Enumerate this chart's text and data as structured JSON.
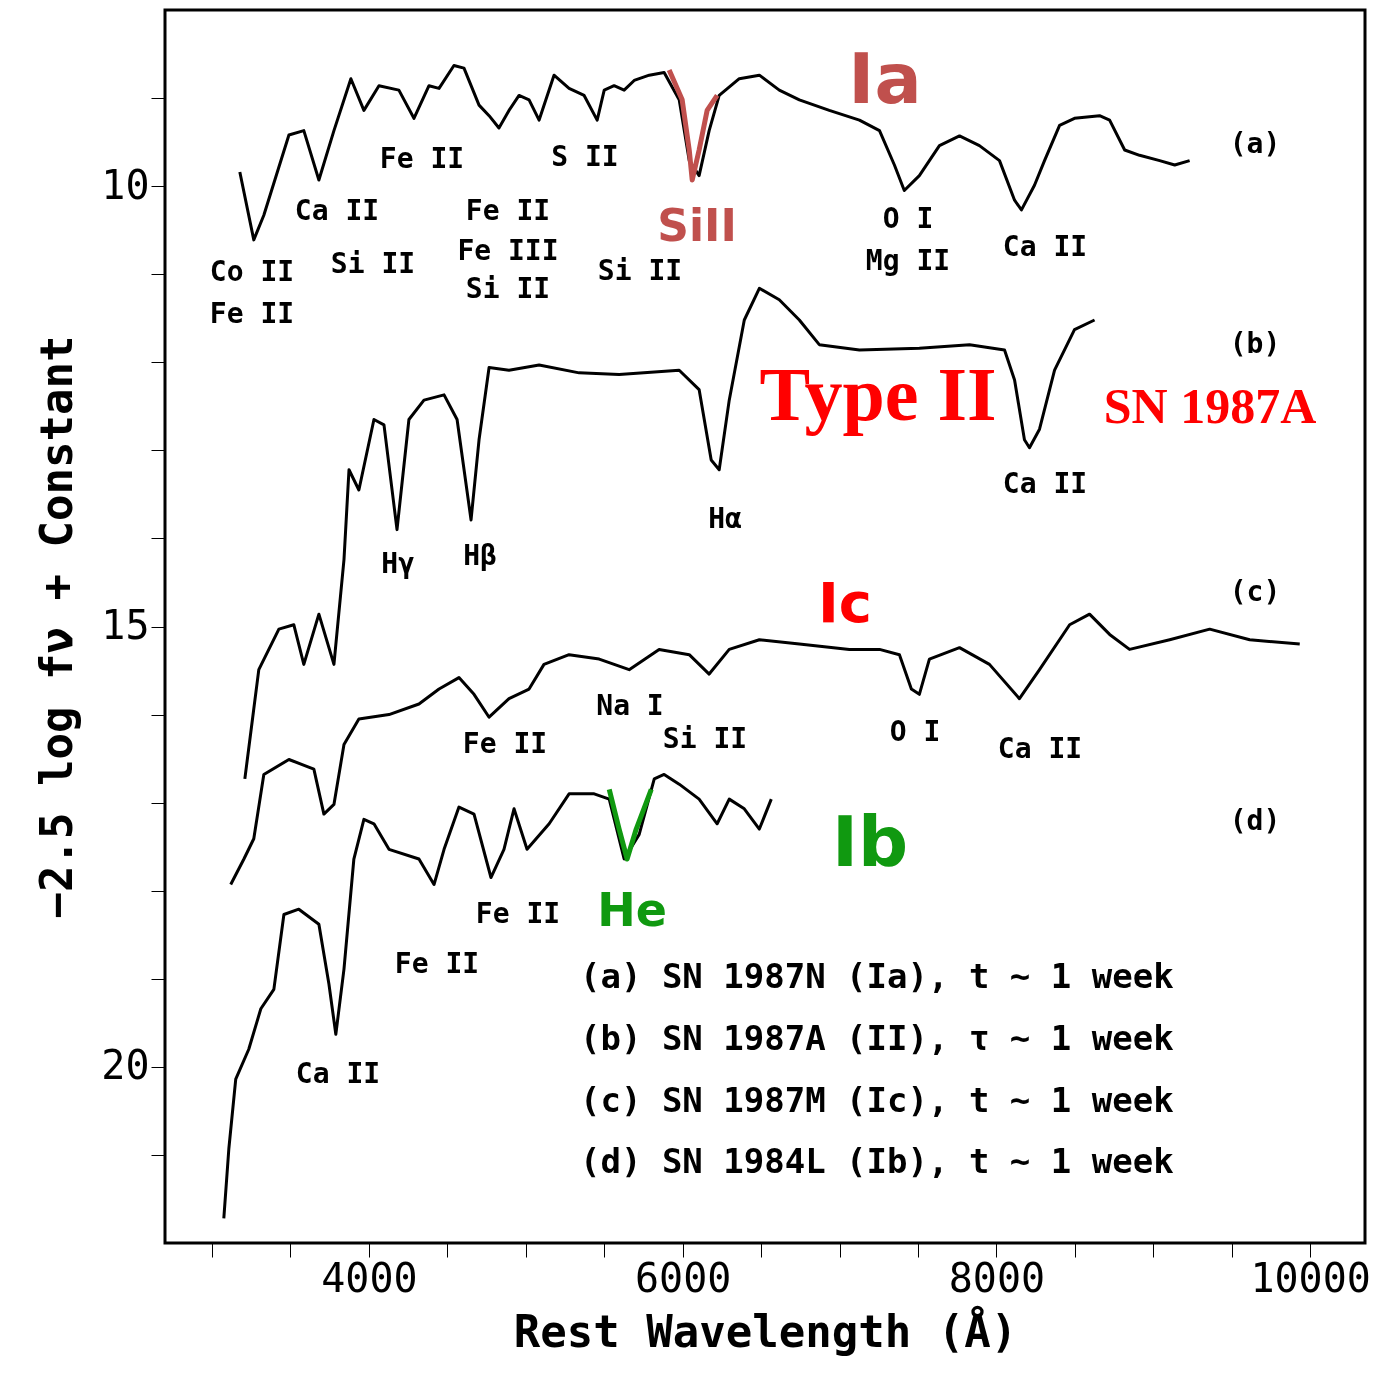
{
  "chart_data": {
    "type": "line",
    "xlabel": "Rest Wavelength (Å)",
    "ylabel": "−2.5 log fν + Constant",
    "xlim": [
      2700,
      10350
    ],
    "ylim": [
      22,
      8
    ],
    "xticks": [
      {
        "value": 3000,
        "label": null
      },
      {
        "value": 3500,
        "label": null
      },
      4000,
      {
        "value": 4500,
        "label": null
      },
      {
        "value": 5000,
        "label": null
      },
      {
        "value": 5500,
        "label": null
      },
      6000,
      {
        "value": 6500,
        "label": null
      },
      {
        "value": 7000,
        "label": null
      },
      {
        "value": 7500,
        "label": null
      },
      8000,
      {
        "value": 8500,
        "label": null
      },
      {
        "value": 9000,
        "label": null
      },
      {
        "value": 9500,
        "label": null
      },
      10000
    ],
    "yticks": [
      {
        "value": 9,
        "label": null
      },
      10,
      {
        "value": 11,
        "label": null
      },
      {
        "value": 12,
        "label": null
      },
      {
        "value": 13,
        "label": null
      },
      {
        "value": 14,
        "label": null
      },
      15,
      {
        "value": 16,
        "label": null
      },
      {
        "value": 17,
        "label": null
      },
      {
        "value": 18,
        "label": null
      },
      {
        "value": 19,
        "label": null
      },
      20,
      {
        "value": 21,
        "label": null
      }
    ],
    "grid": false,
    "marker": "none",
    "line_style": "solid",
    "series": [
      {
        "color": "#000000",
        "x": [
          3177,
          3266,
          3330,
          3490,
          3585,
          3681,
          3777,
          3885,
          3968,
          4064,
          4191,
          4287,
          4383,
          4447,
          4542,
          4606,
          4702,
          4766,
          4829,
          4893,
          4957,
          5021,
          5085,
          5180,
          5276,
          5372,
          5455,
          5500,
          5563,
          5627,
          5691,
          5787,
          5882,
          5978,
          6042,
          6105,
          6169,
          6233,
          6361,
          6489,
          6616,
          6744,
          6935,
          7127,
          7255,
          7350,
          7413,
          7509,
          7637,
          7765,
          7892,
          8020,
          8116,
          8160,
          8243,
          8307,
          8403,
          8498,
          8658,
          8722,
          8818,
          8913,
          9041,
          9137,
          9232
        ],
        "values": [
          9.84,
          10.61,
          10.33,
          9.42,
          9.37,
          9.93,
          9.37,
          8.78,
          9.14,
          8.86,
          8.91,
          9.23,
          8.86,
          8.89,
          8.63,
          8.66,
          9.08,
          9.2,
          9.34,
          9.14,
          8.97,
          9.02,
          9.25,
          8.74,
          8.89,
          8.97,
          9.25,
          8.91,
          8.86,
          8.91,
          8.8,
          8.74,
          8.71,
          9.02,
          9.71,
          9.88,
          9.37,
          8.97,
          8.78,
          8.74,
          8.91,
          9.02,
          9.14,
          9.25,
          9.37,
          9.76,
          10.05,
          9.88,
          9.54,
          9.43,
          9.54,
          9.71,
          10.16,
          10.27,
          9.99,
          9.71,
          9.31,
          9.23,
          9.2,
          9.25,
          9.59,
          9.65,
          9.71,
          9.76,
          9.71
        ]
      },
      {
        "color": "#000000",
        "x": [
          3209,
          3298,
          3426,
          3521,
          3585,
          3681,
          3777,
          3841,
          3873,
          3936,
          4032,
          4096,
          4179,
          4255,
          4351,
          4479,
          4562,
          4651,
          4702,
          4766,
          4893,
          5085,
          5340,
          5595,
          5978,
          6105,
          6182,
          6233,
          6297,
          6393,
          6489,
          6616,
          6744,
          6871,
          7127,
          7509,
          7829,
          8052,
          8116,
          8179,
          8211,
          8275,
          8371,
          8498,
          8626
        ],
        "values": [
          16.73,
          15.49,
          15.03,
          14.98,
          15.43,
          14.86,
          15.43,
          14.24,
          13.22,
          13.45,
          12.65,
          12.71,
          13.9,
          12.65,
          12.43,
          12.37,
          12.65,
          13.79,
          12.88,
          12.06,
          12.09,
          12.03,
          12.12,
          12.14,
          12.09,
          12.31,
          13.11,
          13.22,
          12.43,
          11.52,
          11.16,
          11.29,
          11.52,
          11.8,
          11.86,
          11.84,
          11.8,
          11.86,
          12.2,
          12.88,
          12.97,
          12.76,
          12.09,
          11.63,
          11.52
        ]
      },
      {
        "color": "#000000",
        "x": [
          3119,
          3203,
          3266,
          3330,
          3490,
          3649,
          3713,
          3777,
          3841,
          3936,
          4128,
          4319,
          4447,
          4574,
          4670,
          4766,
          4893,
          5021,
          5116,
          5276,
          5468,
          5659,
          5850,
          6042,
          6169,
          6297,
          6489,
          6744,
          7063,
          7255,
          7382,
          7458,
          7509,
          7573,
          7765,
          7956,
          8147,
          8275,
          8467,
          8594,
          8722,
          8849,
          9105,
          9360,
          9615,
          9934
        ],
        "values": [
          17.93,
          17.64,
          17.41,
          16.68,
          16.51,
          16.62,
          17.13,
          17.02,
          16.34,
          16.05,
          16.0,
          15.88,
          15.71,
          15.58,
          15.77,
          16.03,
          15.82,
          15.71,
          15.43,
          15.32,
          15.37,
          15.49,
          15.26,
          15.32,
          15.54,
          15.26,
          15.15,
          15.2,
          15.26,
          15.26,
          15.32,
          15.71,
          15.77,
          15.37,
          15.24,
          15.43,
          15.82,
          15.49,
          14.98,
          14.86,
          15.09,
          15.26,
          15.15,
          15.03,
          15.15,
          15.2
        ]
      },
      {
        "color": "#000000",
        "x": [
          3075,
          3107,
          3151,
          3234,
          3311,
          3394,
          3458,
          3553,
          3681,
          3745,
          3789,
          3841,
          3904,
          3968,
          4032,
          4128,
          4319,
          4415,
          4479,
          4574,
          4670,
          4778,
          4861,
          4925,
          5008,
          5149,
          5276,
          5436,
          5532,
          5627,
          5723,
          5819,
          5882,
          5978,
          6105,
          6220,
          6297,
          6393,
          6489,
          6565
        ],
        "values": [
          21.72,
          20.93,
          20.14,
          19.8,
          19.34,
          19.12,
          18.27,
          18.21,
          18.38,
          19.06,
          19.63,
          18.89,
          17.64,
          17.19,
          17.24,
          17.53,
          17.64,
          17.93,
          17.53,
          17.05,
          17.13,
          17.85,
          17.53,
          17.07,
          17.53,
          17.24,
          16.9,
          16.9,
          16.96,
          17.64,
          17.36,
          16.73,
          16.68,
          16.79,
          16.96,
          17.24,
          16.96,
          17.07,
          17.3,
          16.96
        ]
      },
      {
        "color": "#c0504d",
        "x": [
          5914,
          5997,
          6042,
          6061,
          6105,
          6156,
          6220
        ],
        "values": [
          8.68,
          9.02,
          9.59,
          9.93,
          9.59,
          9.14,
          8.97
        ]
      },
      {
        "color": "#109910",
        "x": [
          5532,
          5595,
          5646,
          5704,
          5800
        ],
        "values": [
          16.85,
          17.3,
          17.64,
          17.3,
          16.85
        ]
      }
    ],
    "annotations": [
      "(a)",
      "(b)",
      "(c)",
      "(d)",
      "Co II",
      "Fe II",
      "Ca II",
      "Si II",
      "Fe II",
      "Fe II",
      "Fe III",
      "Si II",
      "S II",
      "Si II",
      "O I",
      "Mg II",
      "Ca II",
      "Ca II",
      "Hα",
      "Hγ",
      "Hβ",
      "Na I",
      "Si II",
      "Fe II",
      "O I",
      "Ca II",
      "Fe II",
      "Fe II",
      "Ca II",
      "(a) SN 1987N (Ia), t ~ 1 week",
      "(b) SN 1987A (II), τ ~ 1 week",
      "(c) SN 1987M (Ic), t ~ 1 week",
      "(d) SN 1984L (Ib), t ~ 1 week",
      "SiII",
      "Ia",
      "Type II",
      "SN 1987A",
      "Ic",
      "Ib",
      "He"
    ]
  }
}
